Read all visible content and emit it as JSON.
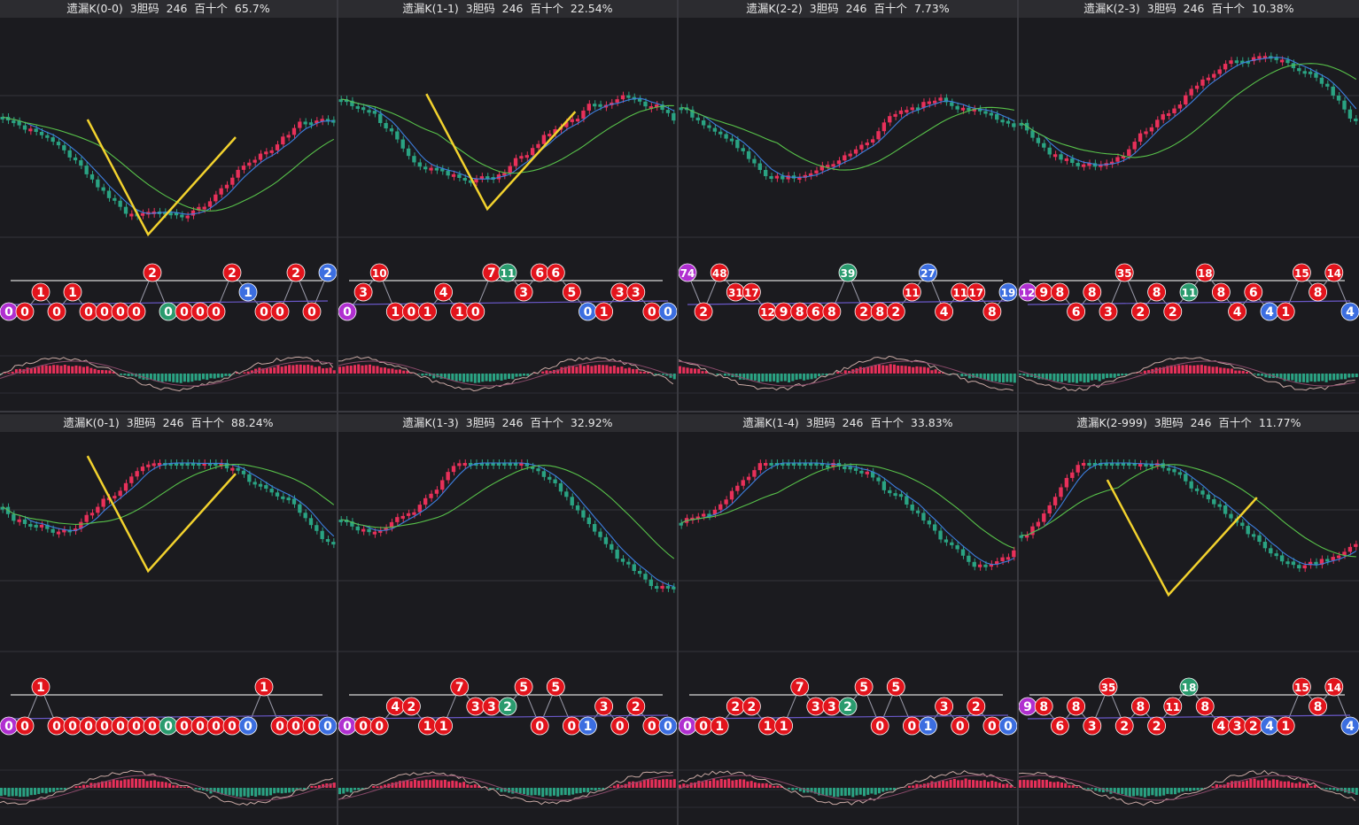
{
  "colors": {
    "background": "#1b1b1f",
    "up": "#e8305a",
    "down": "#2aa383",
    "ma_fast": "#3d7fe0",
    "ma_slow": "#58c24a",
    "annotation": "#f2d22e",
    "ball_red": "#e2141c",
    "ball_green": "#2a9b6e",
    "ball_blue": "#3c6ee0",
    "ball_purple": "#b02fd0",
    "macd_k": "#c9a9a4",
    "macd_d": "#8a4a6a"
  },
  "panels": [
    {
      "title": "遗漏K(0-0)  3胆码  246  百十个  65.7%",
      "vshape": true,
      "balls": [
        {
          "v": "0",
          "c": "purple",
          "r": 2
        },
        {
          "v": "0",
          "c": "red",
          "r": 2
        },
        {
          "v": "1",
          "c": "red",
          "r": 1
        },
        {
          "v": "0",
          "c": "red",
          "r": 2
        },
        {
          "v": "1",
          "c": "red",
          "r": 1
        },
        {
          "v": "0",
          "c": "red",
          "r": 2
        },
        {
          "v": "0",
          "c": "red",
          "r": 2
        },
        {
          "v": "0",
          "c": "red",
          "r": 2
        },
        {
          "v": "0",
          "c": "red",
          "r": 2
        },
        {
          "v": "2",
          "c": "red",
          "r": 0
        },
        {
          "v": "0",
          "c": "green",
          "r": 2
        },
        {
          "v": "0",
          "c": "red",
          "r": 2
        },
        {
          "v": "0",
          "c": "red",
          "r": 2
        },
        {
          "v": "0",
          "c": "red",
          "r": 2
        },
        {
          "v": "2",
          "c": "red",
          "r": 0
        },
        {
          "v": "1",
          "c": "blue",
          "r": 1
        },
        {
          "v": "0",
          "c": "red",
          "r": 2
        },
        {
          "v": "0",
          "c": "red",
          "r": 2
        },
        {
          "v": "2",
          "c": "red",
          "r": 0
        },
        {
          "v": "0",
          "c": "red",
          "r": 2
        },
        {
          "v": "2",
          "c": "blue",
          "r": 0
        }
      ]
    },
    {
      "title": "遗漏K(1-1)  3胆码  246  百十个  22.54%",
      "vshape": true,
      "balls": [
        {
          "v": "0",
          "c": "purple",
          "r": 2
        },
        {
          "v": "3",
          "c": "red",
          "r": 1
        },
        {
          "v": "10",
          "c": "red",
          "r": 0
        },
        {
          "v": "1",
          "c": "red",
          "r": 2
        },
        {
          "v": "0",
          "c": "red",
          "r": 2
        },
        {
          "v": "1",
          "c": "red",
          "r": 2
        },
        {
          "v": "4",
          "c": "red",
          "r": 1
        },
        {
          "v": "1",
          "c": "red",
          "r": 2
        },
        {
          "v": "0",
          "c": "red",
          "r": 2
        },
        {
          "v": "7",
          "c": "red",
          "r": 0
        },
        {
          "v": "11",
          "c": "green",
          "r": 0
        },
        {
          "v": "3",
          "c": "red",
          "r": 1
        },
        {
          "v": "6",
          "c": "red",
          "r": 0
        },
        {
          "v": "6",
          "c": "red",
          "r": 0
        },
        {
          "v": "5",
          "c": "red",
          "r": 1
        },
        {
          "v": "0",
          "c": "blue",
          "r": 2
        },
        {
          "v": "1",
          "c": "red",
          "r": 2
        },
        {
          "v": "3",
          "c": "red",
          "r": 1
        },
        {
          "v": "3",
          "c": "red",
          "r": 1
        },
        {
          "v": "0",
          "c": "red",
          "r": 2
        },
        {
          "v": "0",
          "c": "blue",
          "r": 2
        }
      ]
    },
    {
      "title": "遗漏K(2-2)  3胆码  246  百十个  7.73%",
      "vshape": false,
      "balls": [
        {
          "v": "74",
          "c": "purple",
          "r": 0
        },
        {
          "v": "2",
          "c": "red",
          "r": 2
        },
        {
          "v": "48",
          "c": "red",
          "r": 0
        },
        {
          "v": "31",
          "c": "red",
          "r": 1
        },
        {
          "v": "17",
          "c": "red",
          "r": 1
        },
        {
          "v": "12",
          "c": "red",
          "r": 2
        },
        {
          "v": "9",
          "c": "red",
          "r": 2
        },
        {
          "v": "8",
          "c": "red",
          "r": 2
        },
        {
          "v": "6",
          "c": "red",
          "r": 2
        },
        {
          "v": "8",
          "c": "red",
          "r": 2
        },
        {
          "v": "39",
          "c": "green",
          "r": 0
        },
        {
          "v": "2",
          "c": "red",
          "r": 2
        },
        {
          "v": "8",
          "c": "red",
          "r": 2
        },
        {
          "v": "2",
          "c": "red",
          "r": 2
        },
        {
          "v": "11",
          "c": "red",
          "r": 1
        },
        {
          "v": "27",
          "c": "blue",
          "r": 0
        },
        {
          "v": "4",
          "c": "red",
          "r": 2
        },
        {
          "v": "11",
          "c": "red",
          "r": 1
        },
        {
          "v": "17",
          "c": "red",
          "r": 1
        },
        {
          "v": "8",
          "c": "red",
          "r": 2
        },
        {
          "v": "19",
          "c": "blue",
          "r": 1
        }
      ]
    },
    {
      "title": "遗漏K(2-3)  3胆码  246  百十个  10.38%",
      "vshape": false,
      "balls": [
        {
          "v": "12",
          "c": "purple",
          "r": 1
        },
        {
          "v": "9",
          "c": "red",
          "r": 1
        },
        {
          "v": "8",
          "c": "red",
          "r": 1
        },
        {
          "v": "6",
          "c": "red",
          "r": 2
        },
        {
          "v": "8",
          "c": "red",
          "r": 1
        },
        {
          "v": "3",
          "c": "red",
          "r": 2
        },
        {
          "v": "35",
          "c": "red",
          "r": 0
        },
        {
          "v": "2",
          "c": "red",
          "r": 2
        },
        {
          "v": "8",
          "c": "red",
          "r": 1
        },
        {
          "v": "2",
          "c": "red",
          "r": 2
        },
        {
          "v": "11",
          "c": "green",
          "r": 1
        },
        {
          "v": "18",
          "c": "red",
          "r": 0
        },
        {
          "v": "8",
          "c": "red",
          "r": 1
        },
        {
          "v": "4",
          "c": "red",
          "r": 2
        },
        {
          "v": "6",
          "c": "red",
          "r": 1
        },
        {
          "v": "4",
          "c": "blue",
          "r": 2
        },
        {
          "v": "1",
          "c": "red",
          "r": 2
        },
        {
          "v": "15",
          "c": "red",
          "r": 0
        },
        {
          "v": "8",
          "c": "red",
          "r": 1
        },
        {
          "v": "14",
          "c": "red",
          "r": 0
        },
        {
          "v": "4",
          "c": "blue",
          "r": 2
        }
      ]
    },
    {
      "title": "遗漏K(0-1)  3胆码  246  百十个  88.24%",
      "vshape": true,
      "balls": [
        {
          "v": "0",
          "c": "purple",
          "r": 2
        },
        {
          "v": "0",
          "c": "red",
          "r": 2
        },
        {
          "v": "1",
          "c": "red",
          "r": 0
        },
        {
          "v": "0",
          "c": "red",
          "r": 2
        },
        {
          "v": "0",
          "c": "red",
          "r": 2
        },
        {
          "v": "0",
          "c": "red",
          "r": 2
        },
        {
          "v": "0",
          "c": "red",
          "r": 2
        },
        {
          "v": "0",
          "c": "red",
          "r": 2
        },
        {
          "v": "0",
          "c": "red",
          "r": 2
        },
        {
          "v": "0",
          "c": "red",
          "r": 2
        },
        {
          "v": "0",
          "c": "green",
          "r": 2
        },
        {
          "v": "0",
          "c": "red",
          "r": 2
        },
        {
          "v": "0",
          "c": "red",
          "r": 2
        },
        {
          "v": "0",
          "c": "red",
          "r": 2
        },
        {
          "v": "0",
          "c": "red",
          "r": 2
        },
        {
          "v": "0",
          "c": "blue",
          "r": 2
        },
        {
          "v": "1",
          "c": "red",
          "r": 0
        },
        {
          "v": "0",
          "c": "red",
          "r": 2
        },
        {
          "v": "0",
          "c": "red",
          "r": 2
        },
        {
          "v": "0",
          "c": "red",
          "r": 2
        },
        {
          "v": "0",
          "c": "blue",
          "r": 2
        }
      ]
    },
    {
      "title": "遗漏K(1-3)  3胆码  246  百十个  32.92%",
      "vshape": false,
      "balls": [
        {
          "v": "0",
          "c": "purple",
          "r": 2
        },
        {
          "v": "0",
          "c": "red",
          "r": 2
        },
        {
          "v": "0",
          "c": "red",
          "r": 2
        },
        {
          "v": "4",
          "c": "red",
          "r": 1
        },
        {
          "v": "2",
          "c": "red",
          "r": 1
        },
        {
          "v": "1",
          "c": "red",
          "r": 2
        },
        {
          "v": "1",
          "c": "red",
          "r": 2
        },
        {
          "v": "7",
          "c": "red",
          "r": 0
        },
        {
          "v": "3",
          "c": "red",
          "r": 1
        },
        {
          "v": "3",
          "c": "red",
          "r": 1
        },
        {
          "v": "2",
          "c": "green",
          "r": 1
        },
        {
          "v": "5",
          "c": "red",
          "r": 0
        },
        {
          "v": "0",
          "c": "red",
          "r": 2
        },
        {
          "v": "5",
          "c": "red",
          "r": 0
        },
        {
          "v": "0",
          "c": "red",
          "r": 2
        },
        {
          "v": "1",
          "c": "blue",
          "r": 2
        },
        {
          "v": "3",
          "c": "red",
          "r": 1
        },
        {
          "v": "0",
          "c": "red",
          "r": 2
        },
        {
          "v": "2",
          "c": "red",
          "r": 1
        },
        {
          "v": "0",
          "c": "red",
          "r": 2
        },
        {
          "v": "0",
          "c": "blue",
          "r": 2
        }
      ]
    },
    {
      "title": "遗漏K(1-4)  3胆码  246  百十个  33.83%",
      "vshape": false,
      "balls": [
        {
          "v": "0",
          "c": "purple",
          "r": 2
        },
        {
          "v": "0",
          "c": "red",
          "r": 2
        },
        {
          "v": "1",
          "c": "red",
          "r": 2
        },
        {
          "v": "2",
          "c": "red",
          "r": 1
        },
        {
          "v": "2",
          "c": "red",
          "r": 1
        },
        {
          "v": "1",
          "c": "red",
          "r": 2
        },
        {
          "v": "1",
          "c": "red",
          "r": 2
        },
        {
          "v": "7",
          "c": "red",
          "r": 0
        },
        {
          "v": "3",
          "c": "red",
          "r": 1
        },
        {
          "v": "3",
          "c": "red",
          "r": 1
        },
        {
          "v": "2",
          "c": "green",
          "r": 1
        },
        {
          "v": "5",
          "c": "red",
          "r": 0
        },
        {
          "v": "0",
          "c": "red",
          "r": 2
        },
        {
          "v": "5",
          "c": "red",
          "r": 0
        },
        {
          "v": "0",
          "c": "red",
          "r": 2
        },
        {
          "v": "1",
          "c": "blue",
          "r": 2
        },
        {
          "v": "3",
          "c": "red",
          "r": 1
        },
        {
          "v": "0",
          "c": "red",
          "r": 2
        },
        {
          "v": "2",
          "c": "red",
          "r": 1
        },
        {
          "v": "0",
          "c": "red",
          "r": 2
        },
        {
          "v": "0",
          "c": "blue",
          "r": 2
        }
      ]
    },
    {
      "title": "遗漏K(2-999)  3胆码  246  百十个  11.77%",
      "vshape": true,
      "balls": [
        {
          "v": "9",
          "c": "purple",
          "r": 1
        },
        {
          "v": "8",
          "c": "red",
          "r": 1
        },
        {
          "v": "6",
          "c": "red",
          "r": 2
        },
        {
          "v": "8",
          "c": "red",
          "r": 1
        },
        {
          "v": "3",
          "c": "red",
          "r": 2
        },
        {
          "v": "35",
          "c": "red",
          "r": 0
        },
        {
          "v": "2",
          "c": "red",
          "r": 2
        },
        {
          "v": "8",
          "c": "red",
          "r": 1
        },
        {
          "v": "2",
          "c": "red",
          "r": 2
        },
        {
          "v": "11",
          "c": "red",
          "r": 1
        },
        {
          "v": "18",
          "c": "green",
          "r": 0
        },
        {
          "v": "8",
          "c": "red",
          "r": 1
        },
        {
          "v": "4",
          "c": "red",
          "r": 2
        },
        {
          "v": "3",
          "c": "red",
          "r": 2
        },
        {
          "v": "2",
          "c": "red",
          "r": 2
        },
        {
          "v": "4",
          "c": "blue",
          "r": 2
        },
        {
          "v": "1",
          "c": "red",
          "r": 2
        },
        {
          "v": "15",
          "c": "red",
          "r": 0
        },
        {
          "v": "8",
          "c": "red",
          "r": 1
        },
        {
          "v": "14",
          "c": "red",
          "r": 0
        },
        {
          "v": "4",
          "c": "blue",
          "r": 2
        }
      ]
    }
  ],
  "chart_data": [
    {
      "type": "candlestick",
      "title": "遗漏K(0-0)  3胆码  246  百十个  65.7%",
      "series_points": [
        0,
        0,
        1,
        0,
        1,
        0,
        0,
        0,
        0,
        2,
        0,
        0,
        0,
        0,
        2,
        1,
        0,
        0,
        2,
        0,
        2
      ]
    },
    {
      "type": "candlestick",
      "title": "遗漏K(1-1)  3胆码  246  百十个  22.54%",
      "series_points": [
        0,
        3,
        10,
        1,
        0,
        1,
        4,
        1,
        0,
        7,
        11,
        3,
        6,
        6,
        5,
        0,
        1,
        3,
        3,
        0,
        0
      ]
    },
    {
      "type": "candlestick",
      "title": "遗漏K(2-2)  3胆码  246  百十个  7.73%",
      "series_points": [
        74,
        2,
        48,
        31,
        17,
        12,
        9,
        8,
        6,
        8,
        39,
        2,
        8,
        2,
        11,
        27,
        4,
        11,
        17,
        8,
        19
      ]
    },
    {
      "type": "candlestick",
      "title": "遗漏K(2-3)  3胆码  246  百十个  10.38%",
      "series_points": [
        12,
        9,
        8,
        6,
        8,
        3,
        35,
        2,
        8,
        2,
        11,
        18,
        8,
        4,
        6,
        4,
        1,
        15,
        8,
        14,
        4
      ]
    },
    {
      "type": "candlestick",
      "title": "遗漏K(0-1)  3胆码  246  百十个  88.24%",
      "series_points": [
        0,
        0,
        1,
        0,
        0,
        0,
        0,
        0,
        0,
        0,
        0,
        0,
        0,
        0,
        0,
        0,
        1,
        0,
        0,
        0,
        0
      ]
    },
    {
      "type": "candlestick",
      "title": "遗漏K(1-3)  3胆码  246  百十个  32.92%",
      "series_points": [
        0,
        0,
        0,
        4,
        2,
        1,
        1,
        7,
        3,
        3,
        2,
        5,
        0,
        5,
        0,
        1,
        3,
        0,
        2,
        0,
        0
      ]
    },
    {
      "type": "candlestick",
      "title": "遗漏K(1-4)  3胆码  246  百十个  33.83%",
      "series_points": [
        0,
        0,
        1,
        2,
        2,
        1,
        1,
        7,
        3,
        3,
        2,
        5,
        0,
        5,
        0,
        1,
        3,
        0,
        2,
        0,
        0
      ]
    },
    {
      "type": "candlestick",
      "title": "遗漏K(2-999)  3胆码  246  百十个  11.77%",
      "series_points": [
        9,
        8,
        6,
        8,
        3,
        35,
        2,
        8,
        2,
        11,
        18,
        8,
        4,
        3,
        2,
        4,
        1,
        15,
        8,
        14,
        4
      ]
    }
  ]
}
